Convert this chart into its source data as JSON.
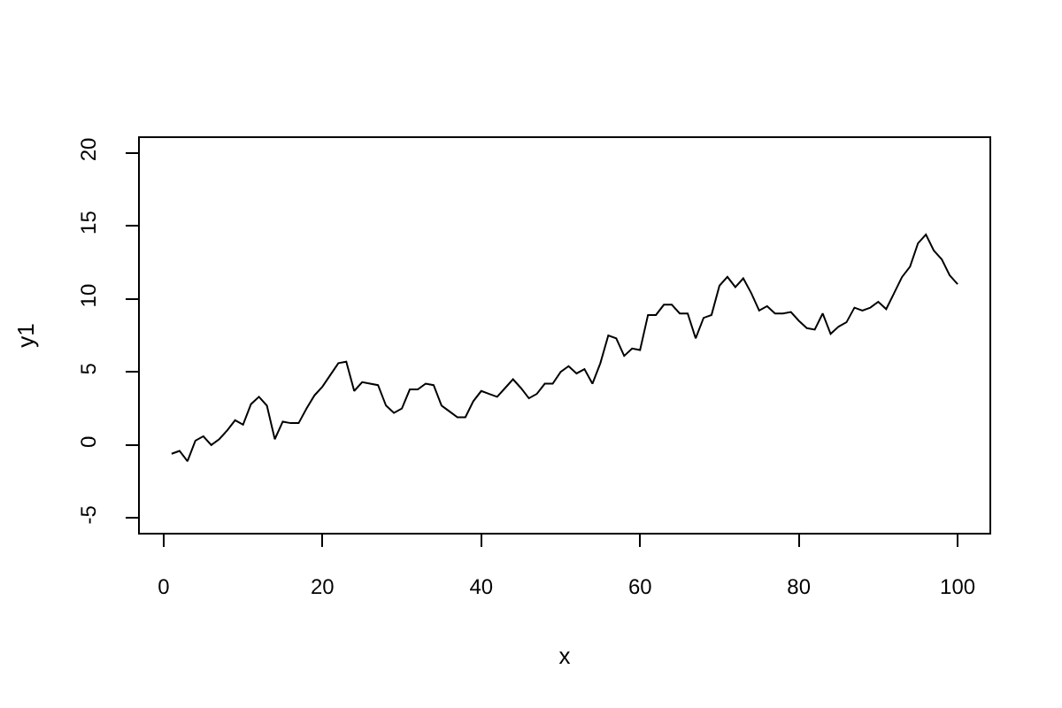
{
  "chart_data": {
    "type": "line",
    "xlabel": "x",
    "ylabel": "y1",
    "x": [
      1,
      2,
      3,
      4,
      5,
      6,
      7,
      8,
      9,
      10,
      11,
      12,
      13,
      14,
      15,
      16,
      17,
      18,
      19,
      20,
      21,
      22,
      23,
      24,
      25,
      26,
      27,
      28,
      29,
      30,
      31,
      32,
      33,
      34,
      35,
      36,
      37,
      38,
      39,
      40,
      41,
      42,
      43,
      44,
      45,
      46,
      47,
      48,
      49,
      50,
      51,
      52,
      53,
      54,
      55,
      56,
      57,
      58,
      59,
      60,
      61,
      62,
      63,
      64,
      65,
      66,
      67,
      68,
      69,
      70,
      71,
      72,
      73,
      74,
      75,
      76,
      77,
      78,
      79,
      80,
      81,
      82,
      83,
      84,
      85,
      86,
      87,
      88,
      89,
      90,
      91,
      92,
      93,
      94,
      95,
      96,
      97,
      98,
      99,
      100
    ],
    "values": [
      -0.6,
      -0.4,
      -1.1,
      0.3,
      0.6,
      0.0,
      0.4,
      1.0,
      1.7,
      1.4,
      2.8,
      3.3,
      2.7,
      0.4,
      1.6,
      1.5,
      1.5,
      2.5,
      3.4,
      4.0,
      4.8,
      5.6,
      5.7,
      3.7,
      4.3,
      4.2,
      4.1,
      2.7,
      2.2,
      2.5,
      3.8,
      3.8,
      4.2,
      4.1,
      2.7,
      2.3,
      1.9,
      1.9,
      3.0,
      3.7,
      3.5,
      3.3,
      3.9,
      4.5,
      3.9,
      3.2,
      3.5,
      4.2,
      4.2,
      5.0,
      5.4,
      4.9,
      5.2,
      4.2,
      5.6,
      7.5,
      7.3,
      6.1,
      6.6,
      6.5,
      8.9,
      8.9,
      9.6,
      9.6,
      9.0,
      9.0,
      7.3,
      8.7,
      8.9,
      10.9,
      11.5,
      10.8,
      11.4,
      10.4,
      9.2,
      9.5,
      9.0,
      9.0,
      9.1,
      8.5,
      8.0,
      7.9,
      9.0,
      7.6,
      8.1,
      8.4,
      9.4,
      9.2,
      9.4,
      9.8,
      9.3,
      10.4,
      11.5,
      12.2,
      13.8,
      14.4,
      13.3,
      12.7,
      11.6,
      11.0
    ],
    "color": "#000000",
    "xlim": [
      -3,
      104
    ],
    "ylim": [
      -6,
      21
    ],
    "xticks": [
      0,
      20,
      40,
      60,
      80,
      100
    ],
    "yticks": [
      -5,
      0,
      5,
      10,
      15,
      20
    ],
    "marker": "none",
    "line_style": "solid"
  }
}
